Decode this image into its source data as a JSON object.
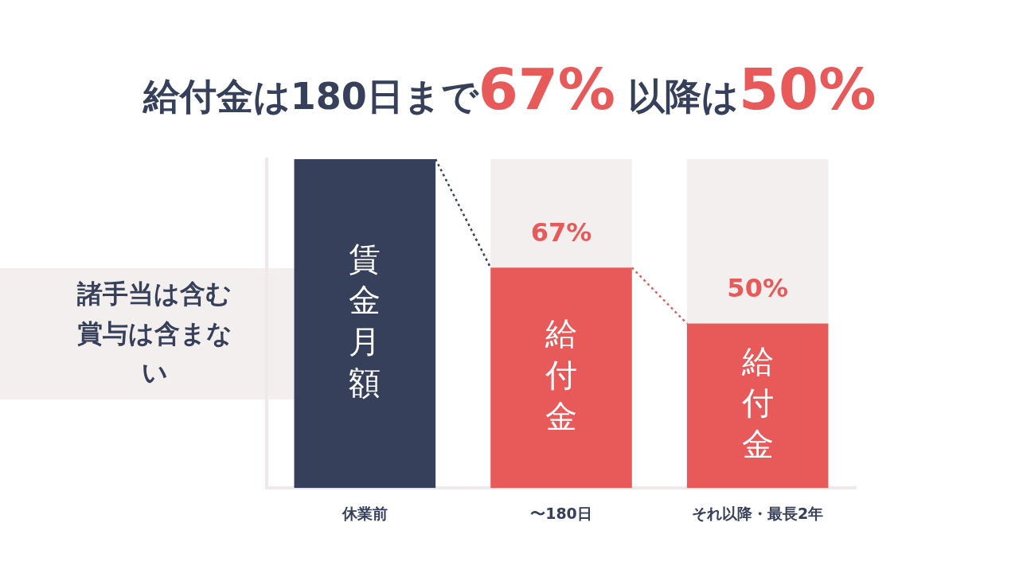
{
  "chart_data": {
    "type": "bar",
    "title": "給付金は180日まで67% 以降は50%",
    "categories": [
      "休業前",
      "〜180日",
      "それ以降・最長2年"
    ],
    "stacked": true,
    "ylim": [
      0,
      100
    ],
    "series": [
      {
        "color": "#36405a",
        "values": [
          100,
          null,
          null
        ]
      },
      {
        "color": "#e85a5a",
        "values": [
          null,
          67,
          50
        ],
        "value_labels": [
          null,
          "67%",
          "50%"
        ]
      },
      {
        "color": "#f4efef",
        "values": [
          null,
          33,
          50
        ]
      }
    ],
    "annotations": [
      "賃金月額",
      "給付金",
      "給付金",
      "諸手当は含む賞与は含まない"
    ]
  }
}
